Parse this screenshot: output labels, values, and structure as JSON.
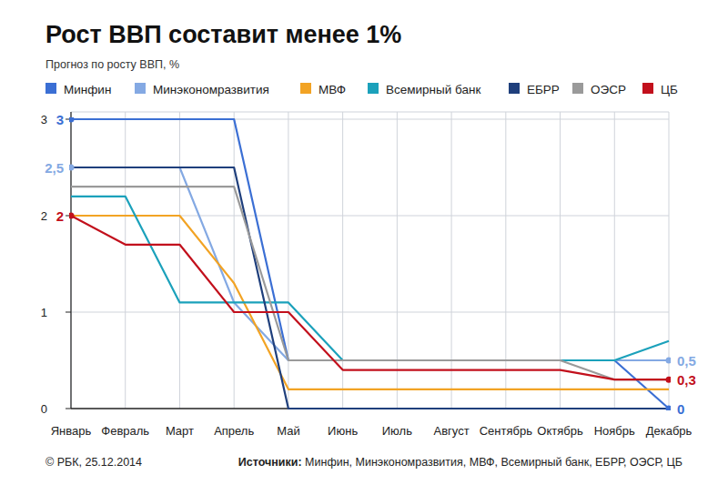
{
  "chart_data": {
    "type": "line",
    "title": "Рост ВВП составит менее 1%",
    "subtitle": "Прогноз по росту ВВП, %",
    "categories": [
      "Январь",
      "Февраль",
      "Март",
      "Апрель",
      "Май",
      "Июнь",
      "Июль",
      "Август",
      "Сентябрь",
      "Октябрь",
      "Ноябрь",
      "Декабрь"
    ],
    "series": [
      {
        "name": "Минфин",
        "color": "#3b6fd4",
        "values": [
          3,
          3,
          3,
          3,
          0.5,
          0.5,
          0.5,
          0.5,
          0.5,
          0.5,
          0.5,
          0
        ]
      },
      {
        "name": "Минэкономразвития",
        "color": "#84a9e3",
        "values": [
          2.5,
          2.5,
          2.5,
          1.1,
          0.5,
          0.5,
          0.5,
          0.5,
          0.5,
          0.5,
          0.5,
          0.5
        ]
      },
      {
        "name": "МВФ",
        "color": "#f2a324",
        "values": [
          2,
          2,
          2,
          1.3,
          0.2,
          0.2,
          0.2,
          0.2,
          0.2,
          0.2,
          0.2,
          0.2
        ]
      },
      {
        "name": "Всемирный банк",
        "color": "#1ba1bb",
        "values": [
          2.2,
          2.2,
          1.1,
          1.1,
          1.1,
          0.5,
          0.5,
          0.5,
          0.5,
          0.5,
          0.5,
          0.7
        ]
      },
      {
        "name": "ЕБРР",
        "color": "#1f3f7c",
        "values": [
          2.5,
          2.5,
          2.5,
          2.5,
          0,
          0,
          0,
          0,
          0,
          0,
          0,
          0
        ]
      },
      {
        "name": "ОЭСР",
        "color": "#9a9a9a",
        "values": [
          2.3,
          2.3,
          2.3,
          2.3,
          0.5,
          0.5,
          0.5,
          0.5,
          0.5,
          0.5,
          0.3,
          0.3
        ]
      },
      {
        "name": "ЦБ",
        "color": "#c2101c",
        "values": [
          2,
          1.7,
          1.7,
          1,
          1,
          0.4,
          0.4,
          0.4,
          0.4,
          0.4,
          0.3,
          0.3
        ]
      }
    ],
    "ylim": [
      0,
      3
    ],
    "yticks": [
      0,
      1,
      2,
      3
    ],
    "grid": true,
    "annotations": [
      {
        "text": "3",
        "x": "Январь",
        "y": 3,
        "color": "#3b6fd4"
      },
      {
        "text": "2,5",
        "x": "Январь",
        "y": 2.5,
        "color": "#84a9e3"
      },
      {
        "text": "2",
        "x": "Январь",
        "y": 2,
        "color": "#c2101c"
      },
      {
        "text": "0,5",
        "x": "Декабрь",
        "y": 0.5,
        "color": "#84a9e3"
      },
      {
        "text": "0,3",
        "x": "Декабрь",
        "y": 0.3,
        "color": "#c2101c"
      },
      {
        "text": "0",
        "x": "Декабрь",
        "y": 0,
        "color": "#3b6fd4"
      }
    ],
    "credit": "© РБК, 25.12.2014",
    "source_label": "Источники:",
    "sources": "Минфин, Минэкономразвития, МВФ, Всемирный банк, ЕБРР, ОЭСР, ЦБ"
  }
}
